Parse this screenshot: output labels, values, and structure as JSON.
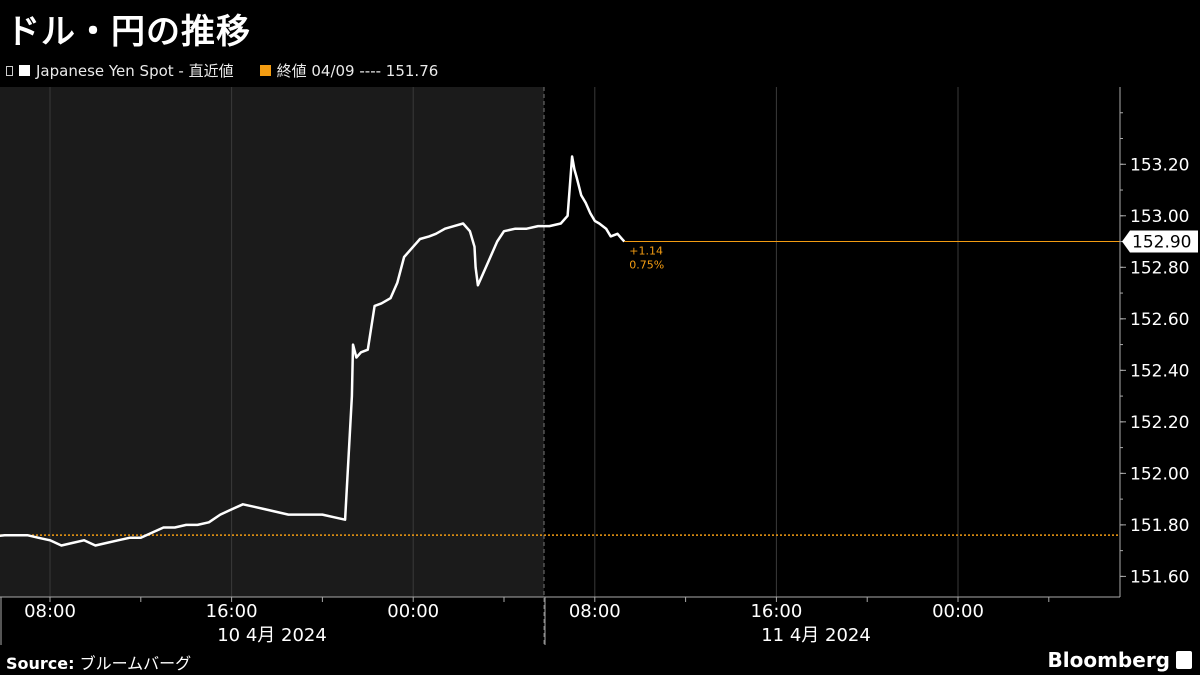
{
  "title": "ドル・円の推移",
  "legend": {
    "series_label": "Japanese Yen Spot - 直近値",
    "close_label": "終値 04/09 ---- 151.76"
  },
  "colors": {
    "background": "#000000",
    "shaded_background": "#1b1b1b",
    "series": "#ffffff",
    "close_line": "#f39c12",
    "grid": "#3a3a3a"
  },
  "chart_data": {
    "type": "line",
    "ylim": [
      151.52,
      153.5
    ],
    "yticks": [
      "151.60",
      "151.80",
      "152.00",
      "152.20",
      "152.40",
      "152.60",
      "152.80",
      "153.00",
      "153.20"
    ],
    "x_tick_labels": [
      "08:00",
      "16:00",
      "00:00",
      "08:00",
      "16:00",
      "00:00"
    ],
    "date_labels": [
      "10 4月 2024",
      "11 4月 2024"
    ],
    "grid": true,
    "last_value_label": "152.90",
    "last_value": 152.9,
    "previous_close": 151.76,
    "change_label": "+1.14",
    "change_pct_label": "0.75%",
    "series": [
      {
        "x": [
          5.0,
          6.0,
          7.0,
          7.5,
          8.0,
          8.5,
          9.0,
          9.5,
          10.0,
          10.5,
          11.0,
          11.5,
          12.0,
          12.5,
          13.0,
          13.5,
          14.0,
          14.5,
          15.0,
          15.5,
          16.0,
          16.5,
          17.0,
          17.5,
          18.0,
          18.5,
          19.0,
          19.5,
          20.0,
          20.5,
          21.0,
          21.3,
          21.35,
          21.5,
          21.7,
          22.0,
          22.3,
          22.6,
          23.0,
          23.3,
          23.6,
          24.0,
          24.3,
          24.7,
          25.0,
          25.4,
          25.8,
          26.2,
          26.5,
          26.7,
          26.75,
          26.85,
          27.0,
          27.3,
          27.7,
          28.0,
          28.5,
          29.0,
          29.5,
          30.0,
          30.5,
          30.8,
          31.0,
          31.1,
          31.2,
          31.4,
          31.6,
          31.8,
          32.0,
          32.2,
          32.5,
          32.7,
          33.0,
          33.2,
          33.3
        ],
        "y": [
          151.75,
          151.76,
          151.76,
          151.75,
          151.74,
          151.72,
          151.73,
          151.74,
          151.72,
          151.73,
          151.74,
          151.75,
          151.75,
          151.77,
          151.79,
          151.79,
          151.8,
          151.8,
          151.81,
          151.84,
          151.86,
          151.88,
          151.87,
          151.86,
          151.85,
          151.84,
          151.84,
          151.84,
          151.84,
          151.83,
          151.82,
          152.3,
          152.5,
          152.45,
          152.47,
          152.48,
          152.65,
          152.66,
          152.68,
          152.74,
          152.84,
          152.88,
          152.91,
          152.92,
          152.93,
          152.95,
          152.96,
          152.97,
          152.94,
          152.88,
          152.8,
          152.73,
          152.76,
          152.82,
          152.9,
          152.94,
          152.95,
          152.95,
          152.96,
          152.96,
          152.97,
          153.0,
          153.23,
          153.18,
          153.15,
          153.08,
          153.05,
          153.01,
          152.98,
          152.97,
          152.95,
          152.92,
          152.93,
          152.91,
          152.9
        ]
      }
    ]
  },
  "footer": {
    "source_label": "Source:",
    "source_text": "ブルームバーグ",
    "brand": "Bloomberg"
  }
}
